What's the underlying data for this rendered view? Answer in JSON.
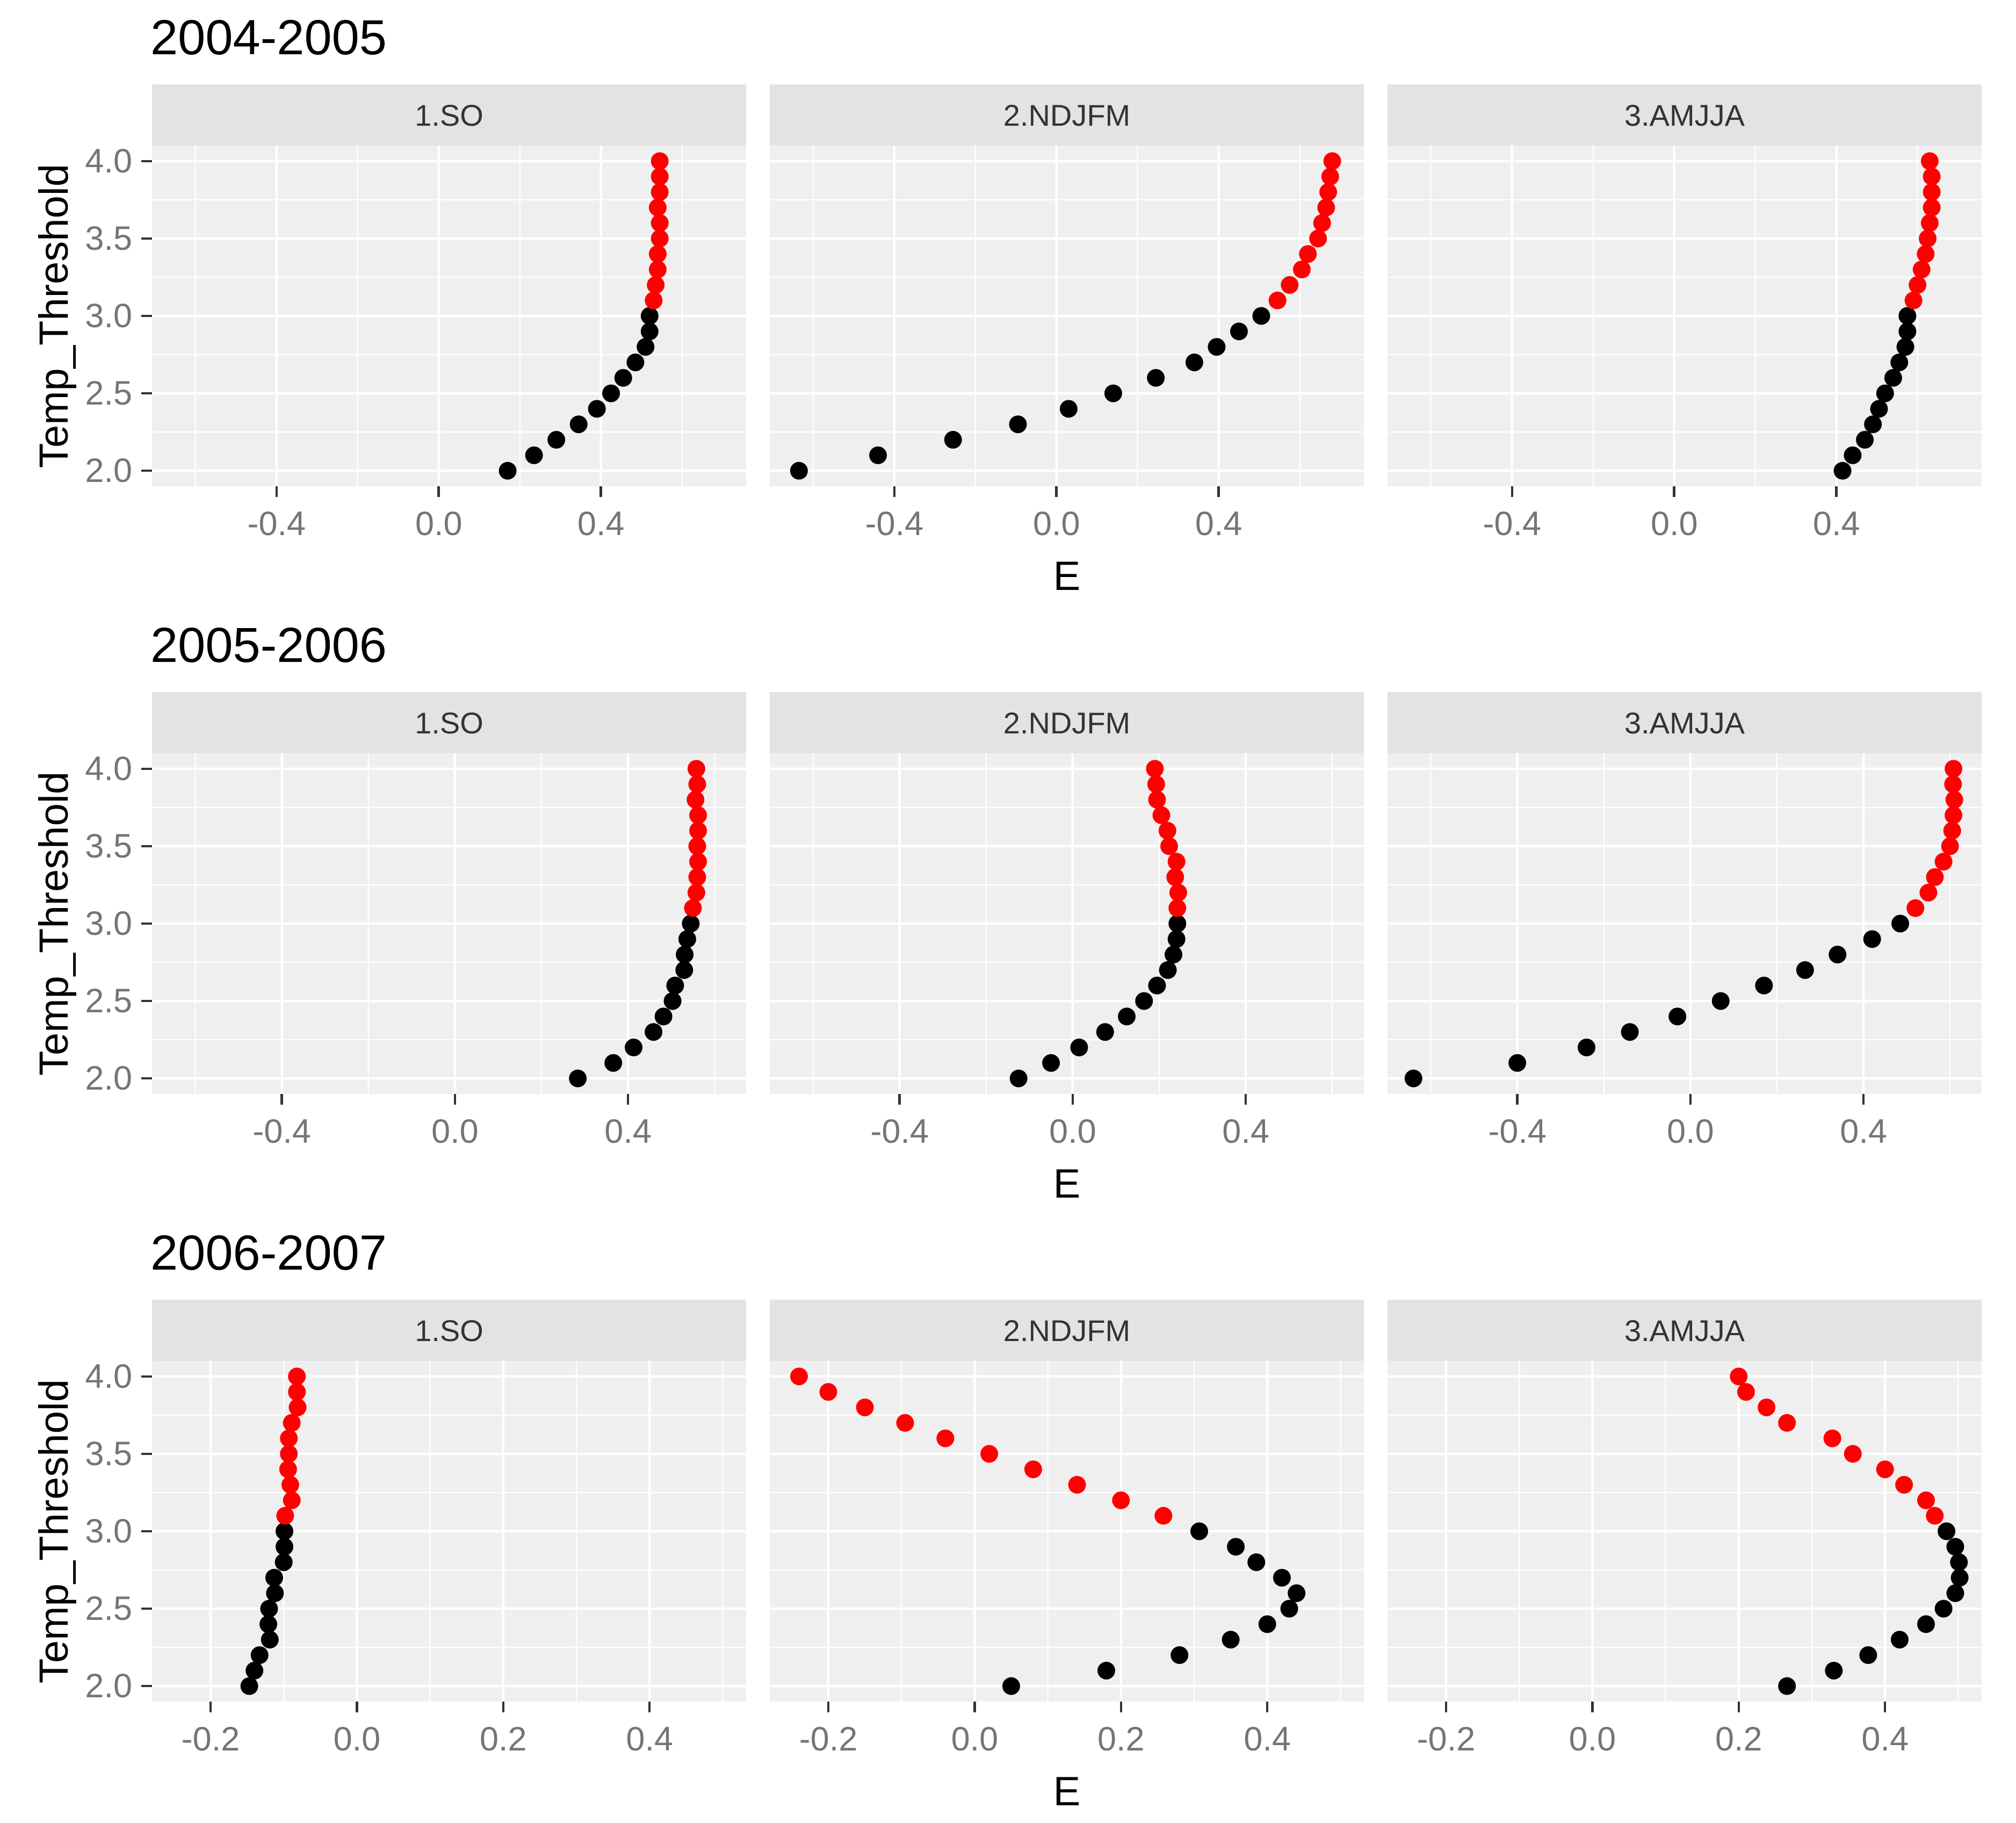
{
  "labels": {
    "x_axis_title": "E",
    "y_axis_title": "Temp_Threshold"
  },
  "colors": {
    "background": "#FFFFFF",
    "panel_background": "#EFEFEF",
    "strip_background": "#E3E3E3",
    "grid_line": "#FFFFFF",
    "tick_mark": "#333333",
    "tick_label": "#757575",
    "strip_text": "#333333",
    "title_text": "#000000",
    "point_black": "#000000",
    "point_red": "#FF0000"
  },
  "temp_thresholds": [
    2.0,
    2.1,
    2.2,
    2.3,
    2.4,
    2.5,
    2.6,
    2.7,
    2.8,
    2.9,
    3.0,
    3.1,
    3.2,
    3.3,
    3.4,
    3.5,
    3.6,
    3.7,
    3.8,
    3.9,
    4.0
  ],
  "y_axis": {
    "range": [
      1.9,
      4.1
    ],
    "tick_values": [
      4.0,
      3.5,
      3.0,
      2.5,
      2.0
    ],
    "tick_labels": [
      "4.0",
      "3.5",
      "3.0",
      "2.5",
      "2.0"
    ],
    "minor_values": [
      2.25,
      2.75,
      3.25,
      3.75
    ]
  },
  "point_color_rule": "black if Temp_Threshold <= 3.0, red if Temp_Threshold > 3.0",
  "chart_data": [
    {
      "type": "scatter",
      "title": "2004-2005",
      "xlabel": "E",
      "ylabel": "Temp_Threshold",
      "x_range": [
        -0.707,
        0.758
      ],
      "x_tick_values": [
        -0.4,
        0.0,
        0.4
      ],
      "x_tick_labels": [
        "-0.4",
        "0.0",
        "0.4"
      ],
      "x_minor_values": [
        -0.6,
        -0.2,
        0.2,
        0.6
      ],
      "facets": [
        {
          "label": "1.SO",
          "E_values": [
            0.17,
            0.235,
            0.29,
            0.345,
            0.39,
            0.425,
            0.455,
            0.485,
            0.51,
            0.52,
            0.52,
            0.53,
            0.535,
            0.54,
            0.54,
            0.545,
            0.545,
            0.54,
            0.545,
            0.545,
            0.545
          ]
        },
        {
          "label": "2.NDJFM",
          "E_values": [
            -0.635,
            -0.44,
            -0.255,
            -0.095,
            0.03,
            0.14,
            0.245,
            0.34,
            0.395,
            0.45,
            0.505,
            0.545,
            0.575,
            0.605,
            0.62,
            0.645,
            0.655,
            0.665,
            0.67,
            0.675,
            0.68
          ]
        },
        {
          "label": "3.AMJJA",
          "E_values": [
            0.415,
            0.44,
            0.47,
            0.49,
            0.505,
            0.52,
            0.54,
            0.555,
            0.57,
            0.575,
            0.575,
            0.59,
            0.6,
            0.61,
            0.62,
            0.625,
            0.63,
            0.635,
            0.635,
            0.635,
            0.63
          ]
        }
      ]
    },
    {
      "type": "scatter",
      "title": "2005-2006",
      "xlabel": "E",
      "ylabel": "Temp_Threshold",
      "x_range": [
        -0.7,
        0.673
      ],
      "x_tick_values": [
        -0.4,
        0.0,
        0.4
      ],
      "x_tick_labels": [
        "-0.4",
        "0.0",
        "0.4"
      ],
      "x_minor_values": [
        -0.6,
        -0.2,
        0.2,
        0.6
      ],
      "facets": [
        {
          "label": "1.SO",
          "E_values": [
            0.284,
            0.366,
            0.413,
            0.459,
            0.482,
            0.503,
            0.509,
            0.53,
            0.531,
            0.537,
            0.545,
            0.55,
            0.558,
            0.56,
            0.562,
            0.56,
            0.562,
            0.562,
            0.556,
            0.56,
            0.558
          ]
        },
        {
          "label": "2.NDJFM",
          "E_values": [
            -0.125,
            -0.05,
            0.015,
            0.075,
            0.125,
            0.165,
            0.195,
            0.22,
            0.233,
            0.24,
            0.242,
            0.242,
            0.244,
            0.237,
            0.24,
            0.223,
            0.219,
            0.205,
            0.195,
            0.193,
            0.19
          ]
        },
        {
          "label": "3.AMJJA",
          "E_values": [
            -0.64,
            -0.4,
            -0.24,
            -0.14,
            -0.03,
            0.07,
            0.17,
            0.265,
            0.34,
            0.42,
            0.485,
            0.52,
            0.55,
            0.565,
            0.585,
            0.6,
            0.605,
            0.608,
            0.61,
            0.607,
            0.608
          ]
        }
      ]
    },
    {
      "type": "scatter",
      "title": "2006-2007",
      "xlabel": "E",
      "ylabel": "Temp_Threshold",
      "x_range": [
        -0.28,
        0.532
      ],
      "x_tick_values": [
        -0.2,
        0.0,
        0.2,
        0.4
      ],
      "x_tick_labels": [
        "-0.2",
        "0.0",
        "0.2",
        "0.4"
      ],
      "x_minor_values": [
        -0.1,
        0.1,
        0.3,
        0.5
      ],
      "facets": [
        {
          "label": "1.SO",
          "E_values": [
            -0.147,
            -0.14,
            -0.133,
            -0.119,
            -0.121,
            -0.12,
            -0.112,
            -0.113,
            -0.1,
            -0.099,
            -0.099,
            -0.098,
            -0.089,
            -0.091,
            -0.094,
            -0.093,
            -0.093,
            -0.089,
            -0.081,
            -0.082,
            -0.082
          ]
        },
        {
          "label": "2.NDJFM",
          "E_values": [
            0.05,
            0.18,
            0.28,
            0.35,
            0.4,
            0.43,
            0.44,
            0.42,
            0.385,
            0.357,
            0.307,
            0.258,
            0.2,
            0.14,
            0.08,
            0.02,
            -0.04,
            -0.095,
            -0.15,
            -0.2,
            -0.24
          ]
        },
        {
          "label": "3.AMJJA",
          "E_values": [
            0.266,
            0.33,
            0.377,
            0.42,
            0.456,
            0.48,
            0.496,
            0.502,
            0.501,
            0.496,
            0.484,
            0.468,
            0.456,
            0.426,
            0.4,
            0.356,
            0.328,
            0.266,
            0.238,
            0.21,
            0.2
          ]
        }
      ]
    }
  ]
}
